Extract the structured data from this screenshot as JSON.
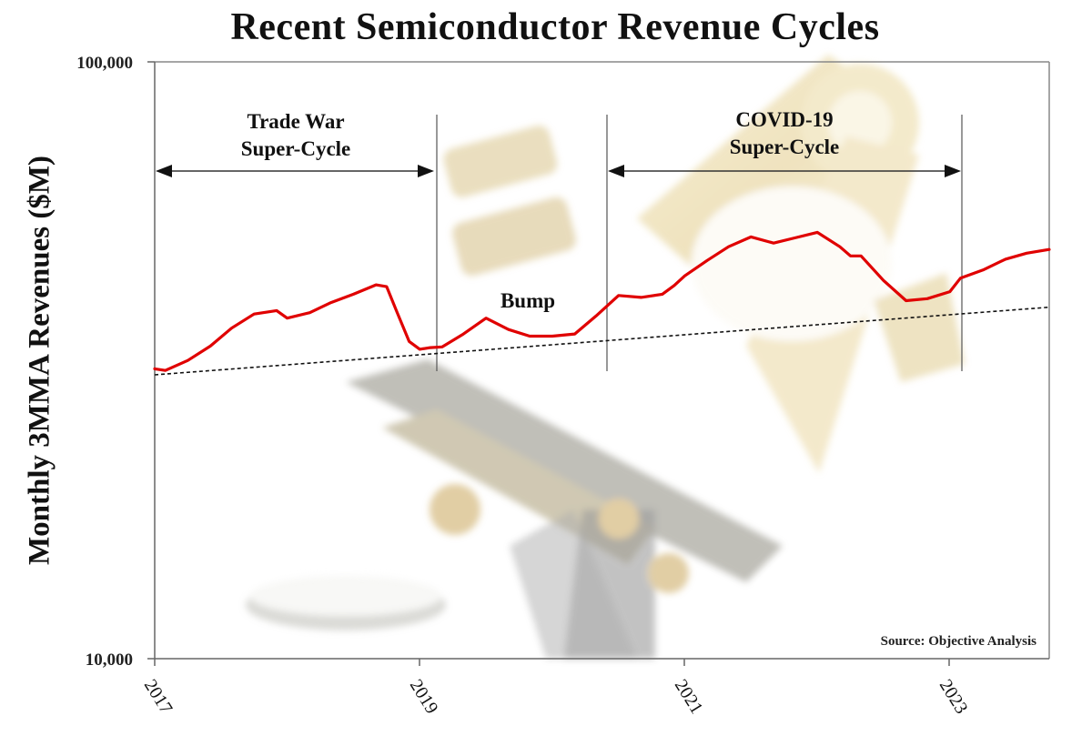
{
  "chart_data": {
    "type": "line",
    "title": "Recent Semiconductor Revenue Cycles",
    "xlabel": "",
    "ylabel": "Monthly 3MMA Revenues ($M)",
    "yscale": "log",
    "ylim": [
      10000,
      100000
    ],
    "xlim": [
      2017.0,
      2023.75
    ],
    "y_ticks": [
      "10,000",
      "100,000"
    ],
    "x_ticks": [
      "2017",
      "2019",
      "2021",
      "2023"
    ],
    "grid": false,
    "legend": null,
    "series": [
      {
        "name": "Semiconductor revenues (3MMA)",
        "color": "#e00000",
        "style": "solid",
        "x": [
          2017.0,
          2017.08,
          2017.25,
          2017.42,
          2017.58,
          2017.75,
          2017.92,
          2018.0,
          2018.17,
          2018.33,
          2018.5,
          2018.67,
          2018.75,
          2018.83,
          2018.92,
          2019.0,
          2019.08,
          2019.17,
          2019.33,
          2019.5,
          2019.67,
          2019.83,
          2020.0,
          2020.17,
          2020.33,
          2020.5,
          2020.67,
          2020.83,
          2020.92,
          2021.0,
          2021.17,
          2021.33,
          2021.5,
          2021.67,
          2021.83,
          2022.0,
          2022.17,
          2022.25,
          2022.33,
          2022.5,
          2022.67,
          2022.83,
          2023.0,
          2023.08,
          2023.25,
          2023.42,
          2023.58,
          2023.75
        ],
        "values": [
          30600,
          30400,
          31600,
          33400,
          35800,
          37800,
          38300,
          37200,
          38000,
          39500,
          40800,
          42300,
          42000,
          38000,
          34000,
          33000,
          33200,
          33300,
          35000,
          37200,
          35600,
          34700,
          34700,
          35000,
          37500,
          40600,
          40300,
          40800,
          42200,
          43800,
          46500,
          49000,
          50900,
          49700,
          50700,
          51800,
          49000,
          47300,
          47300,
          43000,
          39800,
          40100,
          41200,
          43400,
          44800,
          46700,
          47800,
          48500
        ]
      },
      {
        "name": "Trend",
        "color": "#111111",
        "style": "dotted",
        "x": [
          2017.0,
          2023.75
        ],
        "values": [
          29900,
          38800
        ]
      }
    ],
    "annotations": [
      {
        "text": "Trade War Super-Cycle",
        "span": [
          2017.0,
          2019.05
        ],
        "type": "double-arrow"
      },
      {
        "text": "Bump",
        "at": [
          2019.55,
          40500
        ]
      },
      {
        "text": "COVID-19 Super-Cycle",
        "span": [
          2020.35,
          2023.05
        ],
        "type": "double-arrow"
      },
      {
        "text": "Source: Objective Analysis",
        "position": "bottom-right"
      }
    ],
    "vertical_markers": [
      2019.05,
      2020.35,
      2023.05
    ]
  },
  "labels": {
    "title": "Recent Semiconductor Revenue Cycles",
    "ylabel": "Monthly 3MMA Revenues ($M)",
    "ytick_top": "100,000",
    "ytick_bottom": "10,000",
    "xticks": [
      "2017",
      "2019",
      "2021",
      "2023"
    ],
    "annot_trade_line1": "Trade War",
    "annot_trade_line2": "Super-Cycle",
    "annot_covid_line1": "COVID-19",
    "annot_covid_line2": "Super-Cycle",
    "annot_bump": "Bump",
    "source": "Source: Objective Analysis"
  },
  "colors": {
    "line": "#e00000",
    "trend": "#111111",
    "axis": "#777777",
    "background_tint": "#e9d9a6"
  }
}
